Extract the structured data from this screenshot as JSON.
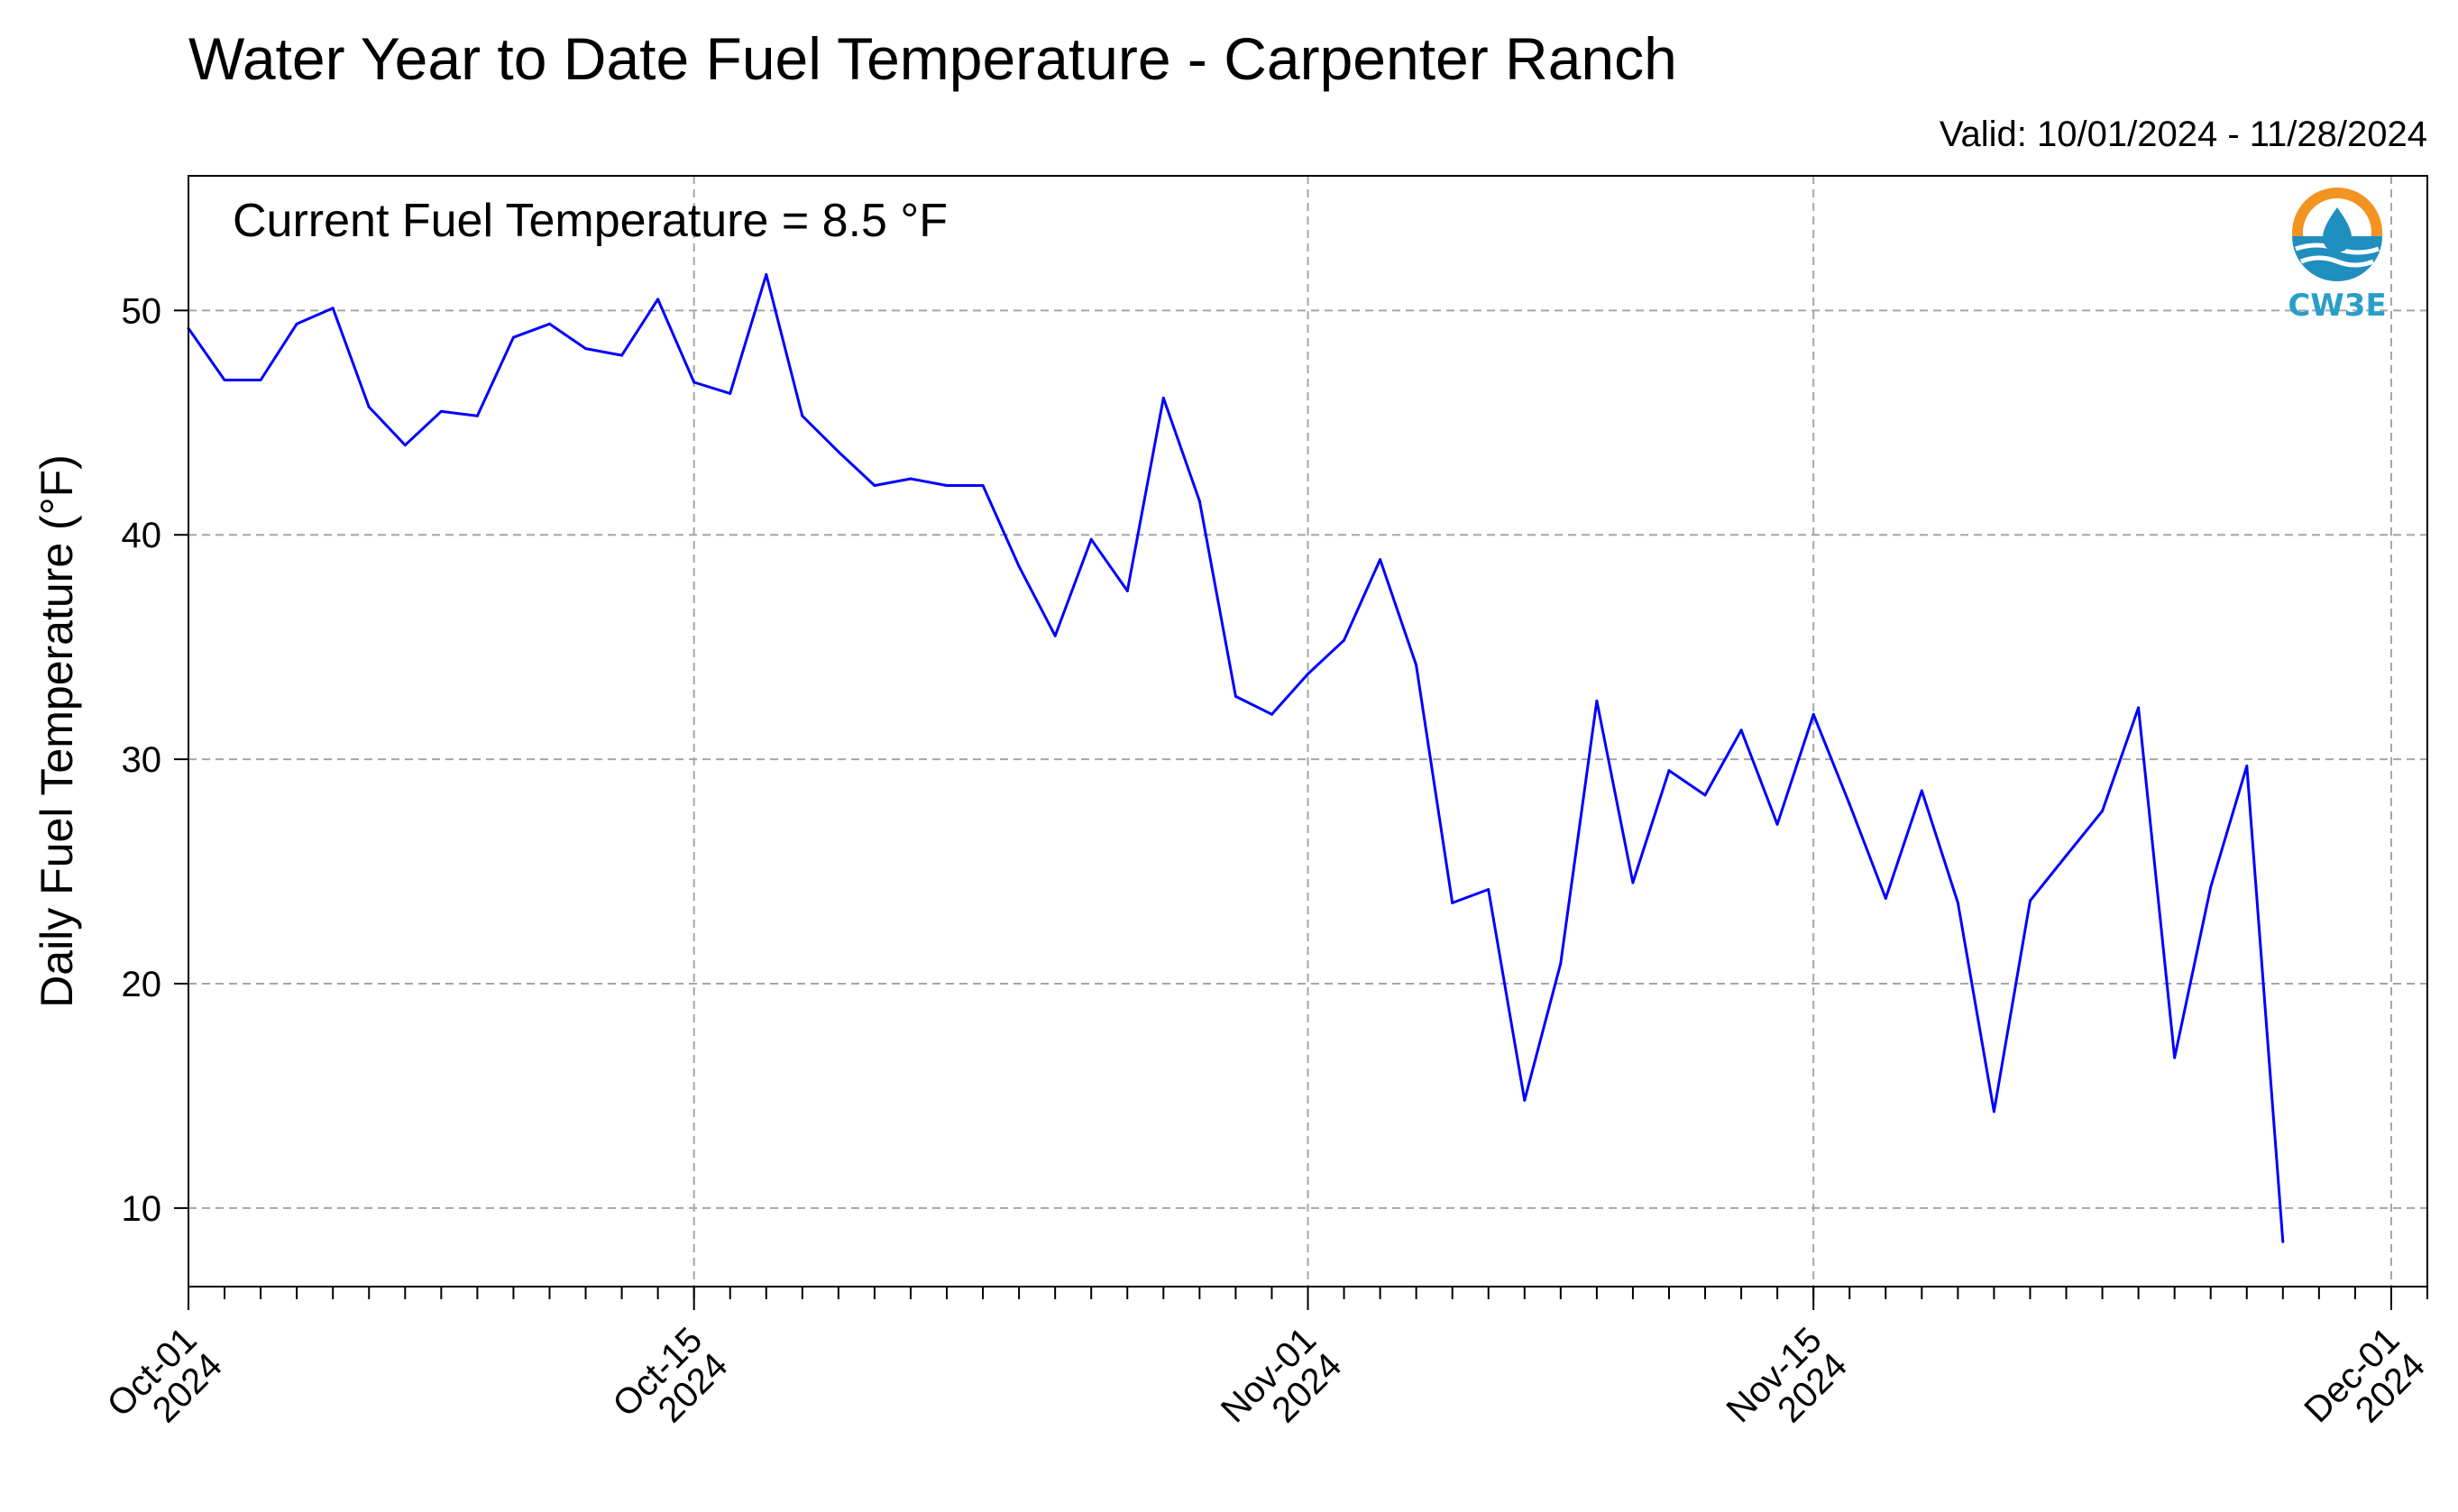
{
  "chart_data": {
    "type": "line",
    "title": "Water Year to Date Fuel Temperature - Carpenter Ranch",
    "subtitle": "Valid: 10/01/2024 - 11/28/2024",
    "annotation": "Current Fuel Temperature = 8.5 °F",
    "ylabel": "Daily Fuel Temperature (°F)",
    "xlabel": "",
    "xlim": [
      "2024-10-01",
      "2024-12-02"
    ],
    "ylim": [
      6.5,
      56
    ],
    "yticks": [
      10,
      20,
      30,
      40,
      50
    ],
    "xticks": [
      {
        "date": "2024-10-01",
        "label": [
          "Oct-01",
          "2024"
        ]
      },
      {
        "date": "2024-10-15",
        "label": [
          "Oct-15",
          "2024"
        ]
      },
      {
        "date": "2024-11-01",
        "label": [
          "Nov-01",
          "2024"
        ]
      },
      {
        "date": "2024-11-15",
        "label": [
          "Nov-15",
          "2024"
        ]
      },
      {
        "date": "2024-12-01",
        "label": [
          "Dec-01",
          "2024"
        ]
      }
    ],
    "grid": true,
    "line_color": "#0000ff",
    "series": [
      {
        "x": [
          "2024-10-01",
          "2024-10-02",
          "2024-10-03",
          "2024-10-04",
          "2024-10-05",
          "2024-10-06",
          "2024-10-07",
          "2024-10-08",
          "2024-10-09",
          "2024-10-10",
          "2024-10-11",
          "2024-10-12",
          "2024-10-13",
          "2024-10-14",
          "2024-10-15",
          "2024-10-16",
          "2024-10-17",
          "2024-10-18",
          "2024-10-19",
          "2024-10-20",
          "2024-10-21",
          "2024-10-22",
          "2024-10-23",
          "2024-10-24",
          "2024-10-25",
          "2024-10-26",
          "2024-10-27",
          "2024-10-28",
          "2024-10-29",
          "2024-10-30",
          "2024-10-31",
          "2024-11-01",
          "2024-11-02",
          "2024-11-03",
          "2024-11-04",
          "2024-11-05",
          "2024-11-06",
          "2024-11-07",
          "2024-11-08",
          "2024-11-09",
          "2024-11-10",
          "2024-11-11",
          "2024-11-12",
          "2024-11-13",
          "2024-11-14",
          "2024-11-15",
          "2024-11-16",
          "2024-11-17",
          "2024-11-18",
          "2024-11-19",
          "2024-11-20",
          "2024-11-21",
          "2024-11-22",
          "2024-11-23",
          "2024-11-24",
          "2024-11-25",
          "2024-11-26",
          "2024-11-27",
          "2024-11-28"
        ],
        "values": [
          49.2,
          46.9,
          46.9,
          49.4,
          50.1,
          45.7,
          44.0,
          45.5,
          45.3,
          48.8,
          49.4,
          48.3,
          48.0,
          50.5,
          46.8,
          46.3,
          51.6,
          45.3,
          43.7,
          42.2,
          42.5,
          42.2,
          42.2,
          38.6,
          35.5,
          39.8,
          37.5,
          46.1,
          41.5,
          32.8,
          32.0,
          33.8,
          35.3,
          38.9,
          34.2,
          23.6,
          24.2,
          14.8,
          20.9,
          32.6,
          24.5,
          29.5,
          28.4,
          31.3,
          27.1,
          32.0,
          28.0,
          23.8,
          28.6,
          23.6,
          14.3,
          23.7,
          25.7,
          27.7,
          32.3,
          16.7,
          24.3,
          29.7,
          8.5
        ]
      }
    ]
  },
  "logo": {
    "text": "CW3E",
    "colors": {
      "orange": "#f39322",
      "blue": "#1f8fc0",
      "teal": "#2a9ec9"
    }
  }
}
